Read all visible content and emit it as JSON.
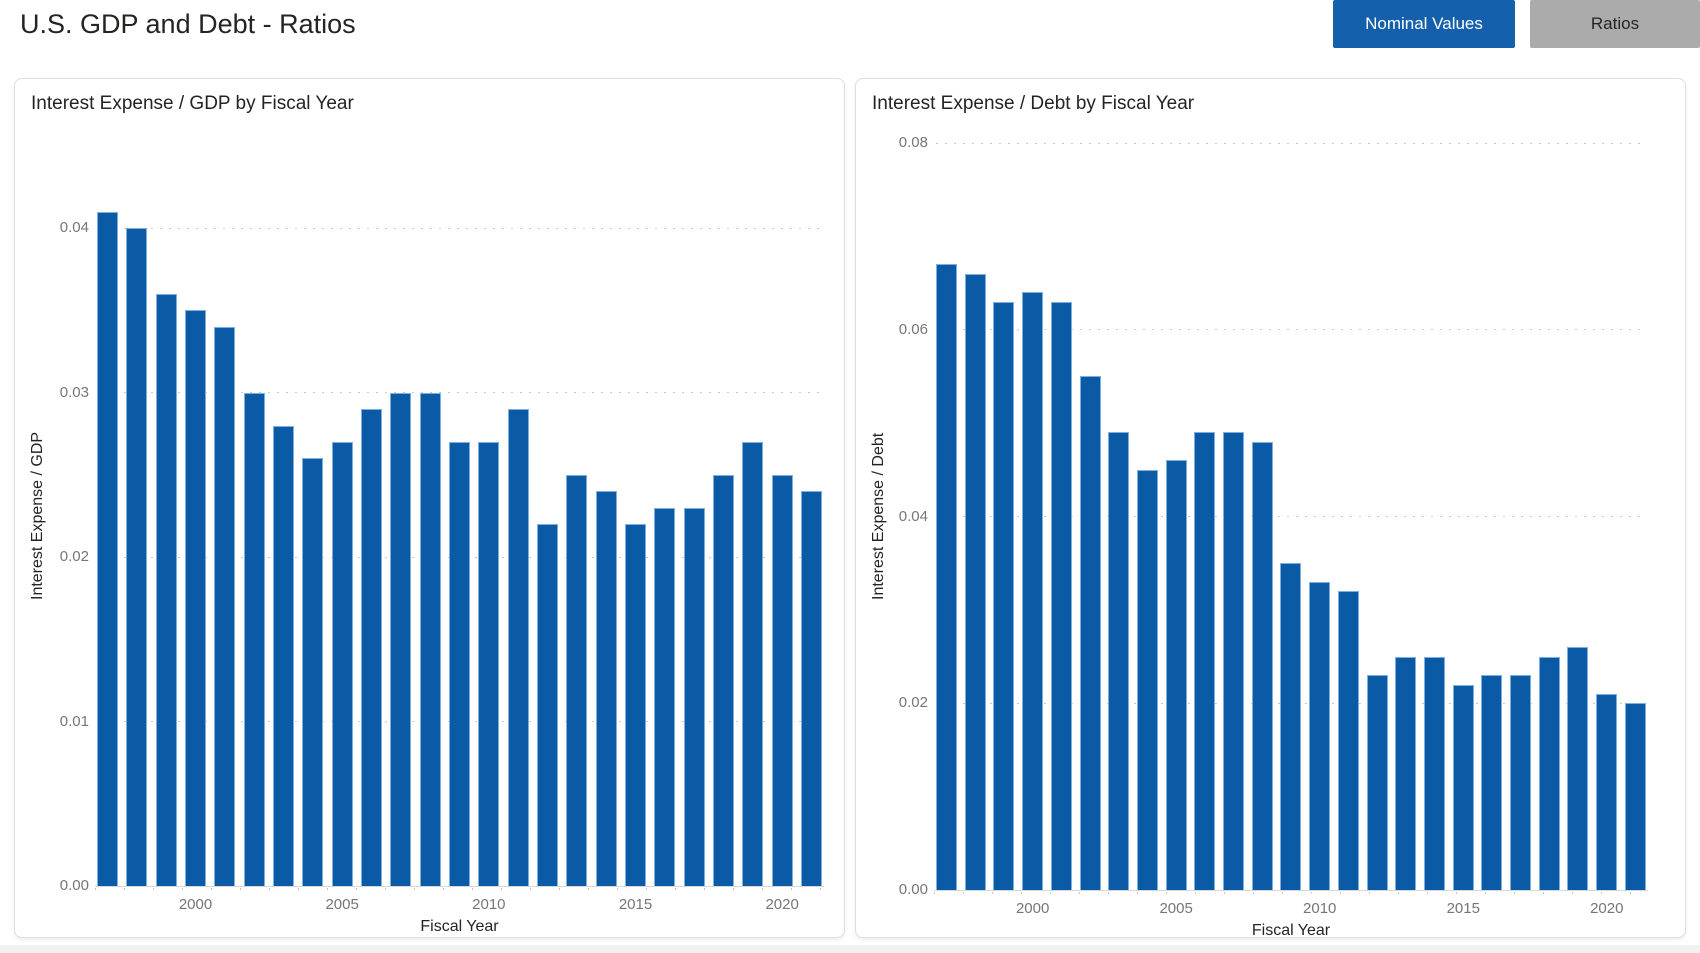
{
  "header": {
    "title": "U.S. GDP and Debt - Ratios",
    "buttons": [
      {
        "label": "Nominal Values",
        "active": true
      },
      {
        "label": "Ratios",
        "active": false
      }
    ]
  },
  "colors": {
    "bar": "#0B5AA5",
    "bar_border": "#7FAFDD",
    "active_btn_bg": "#1560AC",
    "active_btn_text": "#FFFFFF",
    "inactive_btn_bg": "#ABABAB",
    "inactive_btn_text": "#252423",
    "gridline": "#C9C9C9",
    "axis_label": "#767676",
    "text_dark": "#252423"
  },
  "chart_data": [
    {
      "type": "bar",
      "title": "Interest Expense / GDP by Fiscal Year",
      "xlabel": "Fiscal Year",
      "ylabel": "Interest Expense / GDP",
      "categories": [
        1997,
        1998,
        1999,
        2000,
        2001,
        2002,
        2003,
        2004,
        2005,
        2006,
        2007,
        2008,
        2009,
        2010,
        2011,
        2012,
        2013,
        2014,
        2015,
        2016,
        2017,
        2018,
        2019,
        2020,
        2021
      ],
      "values": [
        0.041,
        0.04,
        0.036,
        0.035,
        0.034,
        0.03,
        0.028,
        0.026,
        0.027,
        0.029,
        0.03,
        0.03,
        0.027,
        0.027,
        0.029,
        0.022,
        0.025,
        0.024,
        0.022,
        0.023,
        0.023,
        0.025,
        0.027,
        0.025,
        0.024
      ],
      "ylim": [
        0,
        0.045
      ],
      "yticks": [
        0,
        0.01,
        0.02,
        0.03,
        0.04
      ],
      "ytick_labels": [
        "0.00",
        "0.01",
        "0.02",
        "0.03",
        "0.04"
      ],
      "xticks": [
        2000,
        2005,
        2010,
        2015,
        2020
      ],
      "grid": "horizontal-dotted",
      "legend": "none"
    },
    {
      "type": "bar",
      "title": "Interest Expense / Debt by Fiscal Year",
      "xlabel": "Fiscal Year",
      "ylabel": "Interest Expense / Debt",
      "categories": [
        1997,
        1998,
        1999,
        2000,
        2001,
        2002,
        2003,
        2004,
        2005,
        2006,
        2007,
        2008,
        2009,
        2010,
        2011,
        2012,
        2013,
        2014,
        2015,
        2016,
        2017,
        2018,
        2019,
        2020,
        2021
      ],
      "values": [
        0.067,
        0.066,
        0.063,
        0.064,
        0.063,
        0.055,
        0.049,
        0.045,
        0.046,
        0.049,
        0.049,
        0.048,
        0.035,
        0.033,
        0.032,
        0.023,
        0.025,
        0.025,
        0.022,
        0.023,
        0.023,
        0.025,
        0.026,
        0.021,
        0.02
      ],
      "ylim": [
        0,
        0.08
      ],
      "yticks": [
        0,
        0.02,
        0.04,
        0.06,
        0.08
      ],
      "ytick_labels": [
        "0.00",
        "0.02",
        "0.04",
        "0.06",
        "0.08"
      ],
      "xticks": [
        2000,
        2005,
        2010,
        2015,
        2020
      ],
      "grid": "horizontal-dotted",
      "legend": "none"
    }
  ]
}
